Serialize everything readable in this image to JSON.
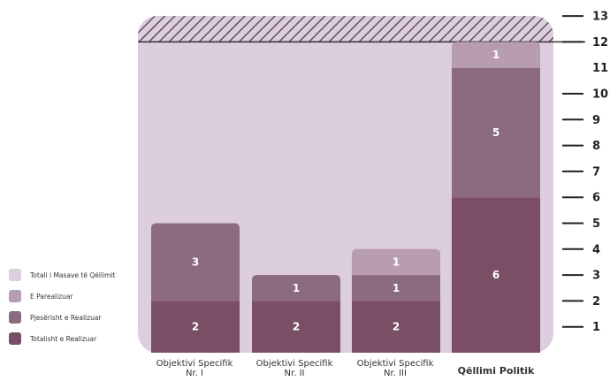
{
  "chart_data": {
    "type": "bar",
    "stacked": true,
    "categories": [
      {
        "line1": "Objektivi Specifik",
        "line2": "Nr. I"
      },
      {
        "line1": "Objektivi Specifik",
        "line2": "Nr. II"
      },
      {
        "line1": "Objektivi Specifik",
        "line2": "Nr. III"
      },
      {
        "line1": "Qëllimi Politik",
        "line2": ""
      }
    ],
    "series": [
      {
        "name": "Totalisht e Realizuar",
        "color": "#7a4f66",
        "values": [
          2,
          2,
          2,
          6
        ]
      },
      {
        "name": "Pjesërisht e Realizuar",
        "color": "#8c6a80",
        "values": [
          3,
          1,
          1,
          5
        ]
      },
      {
        "name": "E Parealizuar",
        "color": "#b89cb0",
        "values": [
          0,
          0,
          1,
          1
        ]
      }
    ],
    "total_series": {
      "name": "Totali i Masave të Qëllimit",
      "color": "#dccddf",
      "value": 12
    },
    "ylim": [
      0,
      13
    ],
    "yticks": [
      1,
      2,
      3,
      4,
      5,
      6,
      7,
      8,
      9,
      10,
      11,
      12,
      13
    ],
    "legend_position": "left",
    "xlabel": "",
    "ylabel": ""
  }
}
